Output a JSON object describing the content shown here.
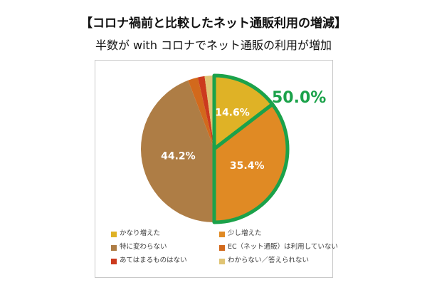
{
  "chart_data": {
    "type": "pie",
    "title": "【コロナ禍前と比較したネット通販利用の増減】",
    "subtitle": "半数が with コロナでネット通販の利用が増加",
    "direction": "clockwise",
    "start_angle_deg": 0,
    "legend_position": "bottom",
    "highlight_color": "#1ba24a",
    "annotation": {
      "text": "50.0%",
      "color": "#1ba24a"
    },
    "slices": [
      {
        "label": "かなり増えた",
        "value": 14.6,
        "display": "14.6%",
        "color": "#dfb226",
        "highlighted": true
      },
      {
        "label": "少し増えた",
        "value": 35.4,
        "display": "35.4%",
        "color": "#e08a24",
        "highlighted": true
      },
      {
        "label": "特に変わらない",
        "value": 44.2,
        "display": "44.2%",
        "color": "#ae7d45",
        "highlighted": false
      },
      {
        "label": "EC（ネット通販）は利用していない",
        "value": 2.2,
        "display": "",
        "color": "#d2691c",
        "highlighted": false
      },
      {
        "label": "あてはまるものはない",
        "value": 1.5,
        "display": "",
        "color": "#cc3a1e",
        "highlighted": false
      },
      {
        "label": "わからない／答えられない",
        "value": 2.1,
        "display": "",
        "color": "#e0c474",
        "highlighted": false
      }
    ]
  }
}
